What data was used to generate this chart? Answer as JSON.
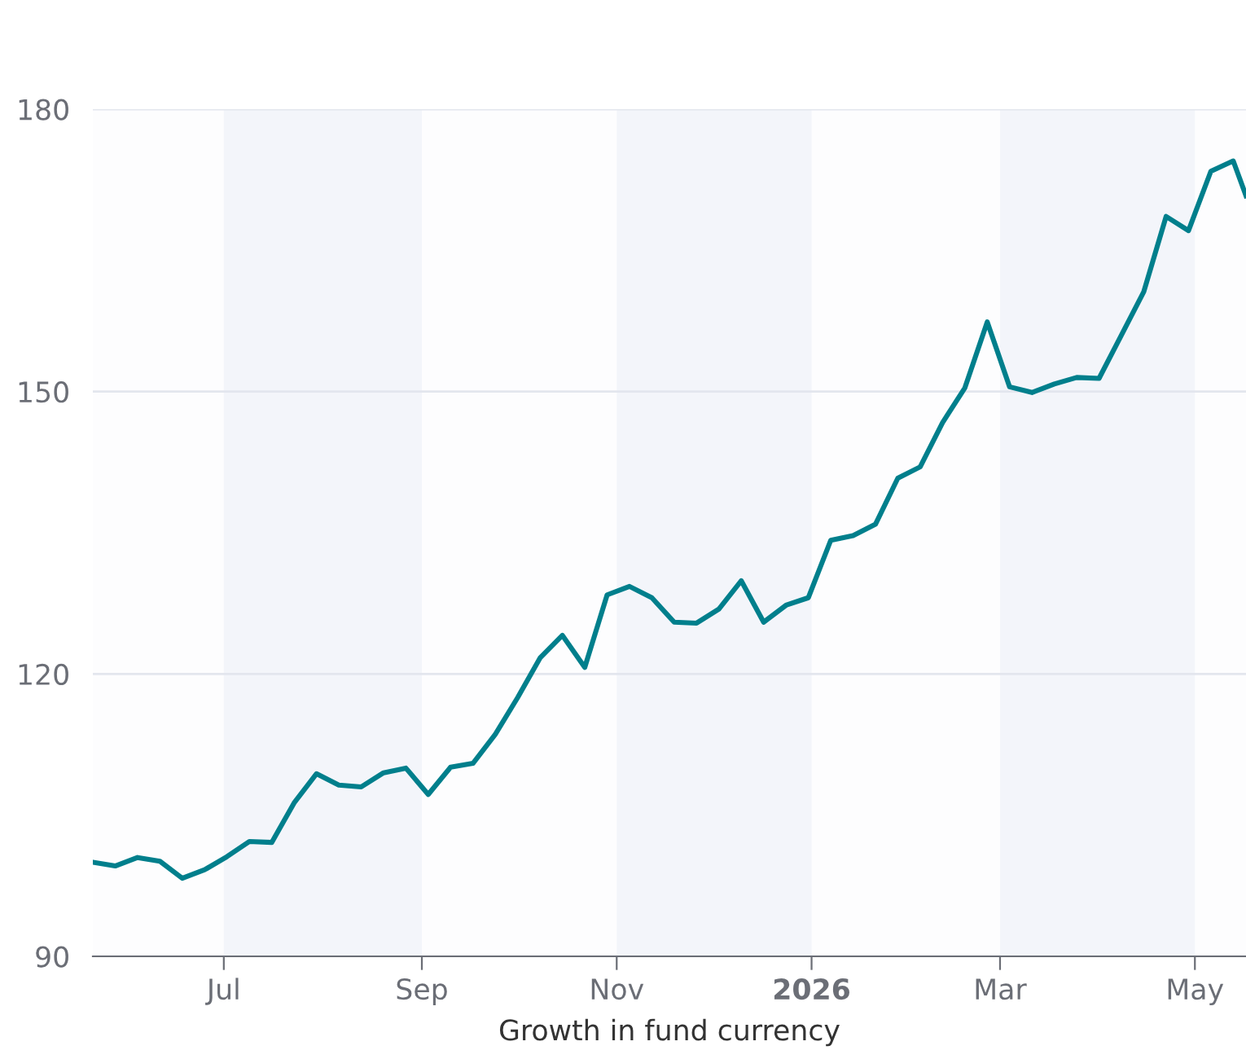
{
  "chart_data": {
    "type": "line",
    "xlabel": "Growth in fund currency",
    "x": [
      "2025-05-21",
      "2025-05-28",
      "2025-06-04",
      "2025-06-11",
      "2025-06-18",
      "2025-06-25",
      "2025-07-02",
      "2025-07-09",
      "2025-07-16",
      "2025-07-23",
      "2025-07-30",
      "2025-08-06",
      "2025-08-13",
      "2025-08-20",
      "2025-08-27",
      "2025-09-03",
      "2025-09-10",
      "2025-09-17",
      "2025-09-24",
      "2025-10-01",
      "2025-10-08",
      "2025-10-15",
      "2025-10-22",
      "2025-10-29",
      "2025-11-05",
      "2025-11-12",
      "2025-11-19",
      "2025-11-26",
      "2025-12-03",
      "2025-12-10",
      "2025-12-17",
      "2025-12-24",
      "2025-12-31",
      "2026-01-07",
      "2026-01-14",
      "2026-01-21",
      "2026-01-28",
      "2026-02-04",
      "2026-02-11",
      "2026-02-18",
      "2026-02-25",
      "2026-03-04",
      "2026-03-11",
      "2026-03-18",
      "2026-03-25",
      "2026-04-01",
      "2026-04-08",
      "2026-04-15",
      "2026-04-22",
      "2026-04-29",
      "2026-05-06",
      "2026-05-13",
      "2026-05-17"
    ],
    "series": [
      {
        "color": "#007f8c",
        "values": [
          100.0,
          99.6,
          100.5,
          100.1,
          98.3,
          99.2,
          100.6,
          102.2,
          102.1,
          106.3,
          109.4,
          108.2,
          108.0,
          109.5,
          110.0,
          107.2,
          110.1,
          110.5,
          113.6,
          117.5,
          121.7,
          124.1,
          120.7,
          128.4,
          129.3,
          128.1,
          125.5,
          125.4,
          126.9,
          129.9,
          125.5,
          127.3,
          128.1,
          134.2,
          134.7,
          135.9,
          140.8,
          142.0,
          146.7,
          150.4,
          157.4,
          150.5,
          149.9,
          150.8,
          151.5,
          151.4,
          156.0,
          160.6,
          168.6,
          167.1,
          173.4,
          174.5,
          170.8
        ]
      }
    ],
    "xlim": [
      "2025-05-21",
      "2026-05-17"
    ],
    "xticks": [
      {
        "value": "2025-07-01",
        "label": "Jul"
      },
      {
        "value": "2025-09-01",
        "label": "Sep"
      },
      {
        "value": "2025-11-01",
        "label": "Nov"
      },
      {
        "value": "2026-01-01",
        "label": "2026"
      },
      {
        "value": "2026-03-01",
        "label": "Mar"
      },
      {
        "value": "2026-05-01",
        "label": "May"
      }
    ],
    "ylim": [
      90,
      180
    ],
    "yticks": [
      90,
      120,
      150,
      180
    ],
    "bands": [
      {
        "axis": "x",
        "from": "2025-07-01",
        "to": "2025-09-01",
        "color": "#f3f5fa"
      },
      {
        "axis": "x",
        "from": "2025-11-01",
        "to": "2026-01-01",
        "color": "#f3f5fa"
      },
      {
        "axis": "x",
        "from": "2026-03-01",
        "to": "2026-05-01",
        "color": "#f3f5fa"
      }
    ],
    "grid": "y",
    "marker": "none",
    "line_style": "solid"
  }
}
